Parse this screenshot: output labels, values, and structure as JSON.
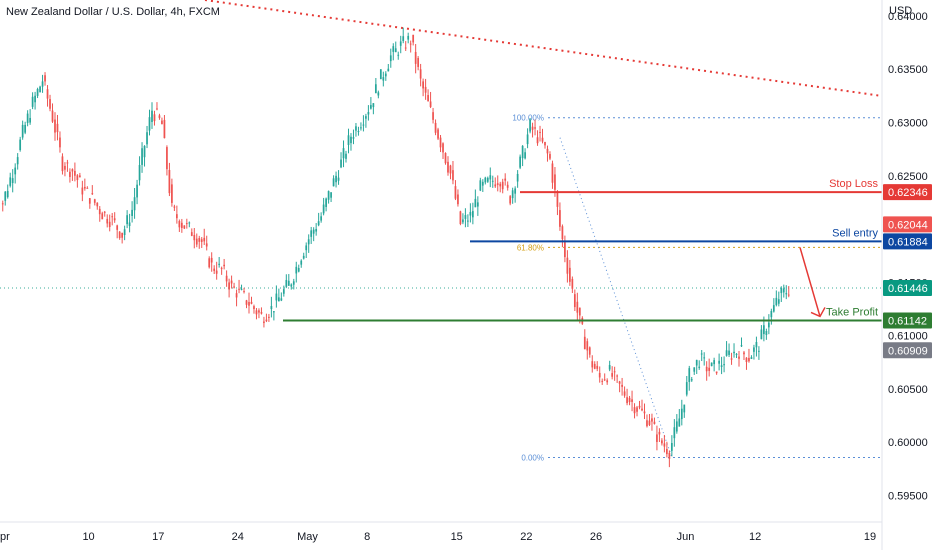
{
  "header": {
    "title": "New Zealand Dollar / U.S. Dollar, 4h, FXCM",
    "unit": "USD"
  },
  "colors": {
    "up": "#26a69a",
    "down": "#ef5350",
    "stop": "#e53935",
    "entry": "#0d47a1",
    "tp": "#2e7d32",
    "fib": "#5b8fd6",
    "fib618": "#d4a017",
    "trend": "#e53935",
    "last": "#089981",
    "grey": "#787b86",
    "orange_badge": "#f23645"
  },
  "axis": {
    "y_ticks": [
      "0.64000",
      "0.63500",
      "0.63000",
      "0.62500",
      "0.61500",
      "0.61000",
      "0.60500",
      "0.60000",
      "0.59500"
    ],
    "y_tick_values": [
      0.64,
      0.635,
      0.63,
      0.625,
      0.615,
      0.61,
      0.605,
      0.6,
      0.595
    ],
    "x_ticks": [
      "pr",
      "10",
      "17",
      "24",
      "May",
      "8",
      "15",
      "22",
      "26",
      "Jun",
      "12",
      "19"
    ]
  },
  "badges": [
    {
      "label": "0.62346",
      "value": 0.62346,
      "color": "#e53935"
    },
    {
      "label": "0.62044",
      "value": 0.62044,
      "color": "#ef5350"
    },
    {
      "label": "0.61884",
      "value": 0.61884,
      "color": "#0d47a1"
    },
    {
      "label": "0.61446",
      "value": 0.61446,
      "color": "#089981"
    },
    {
      "label": "0.61142",
      "value": 0.61142,
      "color": "#2e7d32"
    },
    {
      "label": "0.60909",
      "value": 0.60909,
      "color": "#787b86"
    }
  ],
  "levels": {
    "stop_loss": {
      "label": "Stop Loss",
      "value": 0.62346
    },
    "sell_entry": {
      "label": "Sell entry",
      "value": 0.61884
    },
    "take_profit": {
      "label": "Take Profit",
      "value": 0.61142
    }
  },
  "fib": {
    "high": {
      "label": "100.00%",
      "value": 0.63045
    },
    "level618": {
      "label": "61.80%",
      "value": 0.61828
    },
    "low": {
      "label": "0.00%",
      "value": 0.59855
    }
  },
  "chart_data": {
    "type": "candlestick",
    "title": "New Zealand Dollar / U.S. Dollar, 4h, FXCM",
    "ylabel": "USD",
    "ylim": [
      0.5925,
      0.6415
    ],
    "price_path": [
      [
        "pr",
        0.6225
      ],
      [
        "",
        0.6255
      ],
      [
        "",
        0.629
      ],
      [
        "",
        0.6318
      ],
      [
        "",
        0.634
      ],
      [
        "",
        0.6305
      ],
      [
        "",
        0.6262
      ],
      [
        "",
        0.6255
      ],
      [
        "",
        0.6238
      ],
      [
        "10",
        0.6228
      ],
      [
        "",
        0.6215
      ],
      [
        "",
        0.6208
      ],
      [
        "",
        0.6195
      ],
      [
        "",
        0.6218
      ],
      [
        "",
        0.6268
      ],
      [
        "",
        0.6312
      ],
      [
        "17",
        0.6298
      ],
      [
        "",
        0.6218
      ],
      [
        "",
        0.6205
      ],
      [
        "",
        0.6198
      ],
      [
        "",
        0.6188
      ],
      [
        "",
        0.6165
      ],
      [
        "",
        0.6162
      ],
      [
        "",
        0.6145
      ],
      [
        "24",
        0.6138
      ],
      [
        "",
        0.6128
      ],
      [
        "",
        0.6118
      ],
      [
        "",
        0.6125
      ],
      [
        "",
        0.6138
      ],
      [
        "",
        0.6152
      ],
      [
        "",
        0.6176
      ],
      [
        "May",
        0.6196
      ],
      [
        "",
        0.6212
      ],
      [
        "",
        0.6238
      ],
      [
        "",
        0.6262
      ],
      [
        "",
        0.6288
      ],
      [
        "",
        0.6302
      ],
      [
        "8",
        0.6318
      ],
      [
        "",
        0.6342
      ],
      [
        "",
        0.6362
      ],
      [
        "",
        0.6372
      ],
      [
        "",
        0.6378
      ],
      [
        "",
        0.6338
      ],
      [
        "",
        0.631
      ],
      [
        "",
        0.6282
      ],
      [
        "",
        0.6252
      ],
      [
        "15",
        0.6205
      ],
      [
        "",
        0.6212
      ],
      [
        "",
        0.6238
      ],
      [
        "",
        0.6245
      ],
      [
        "",
        0.6248
      ],
      [
        "",
        0.623
      ],
      [
        "",
        0.6262
      ],
      [
        "22",
        0.6296
      ],
      [
        "",
        0.6284
      ],
      [
        "",
        0.6265
      ],
      [
        "",
        0.6202
      ],
      [
        "",
        0.6152
      ],
      [
        "",
        0.6112
      ],
      [
        "",
        0.6078
      ],
      [
        "26",
        0.606
      ],
      [
        "",
        0.6065
      ],
      [
        "",
        0.6052
      ],
      [
        "",
        0.604
      ],
      [
        "",
        0.603
      ],
      [
        "",
        0.602
      ],
      [
        "",
        0.6002
      ],
      [
        "",
        0.5992
      ],
      [
        "",
        0.6022
      ],
      [
        "Jun",
        0.6062
      ],
      [
        "",
        0.6078
      ],
      [
        "",
        0.6068
      ],
      [
        "",
        0.6072
      ],
      [
        "",
        0.6082
      ],
      [
        "",
        0.6086
      ],
      [
        "",
        0.608
      ],
      [
        "12",
        0.6092
      ],
      [
        "",
        0.6116
      ],
      [
        "",
        0.6136
      ],
      [
        "",
        0.6144
      ]
    ]
  }
}
